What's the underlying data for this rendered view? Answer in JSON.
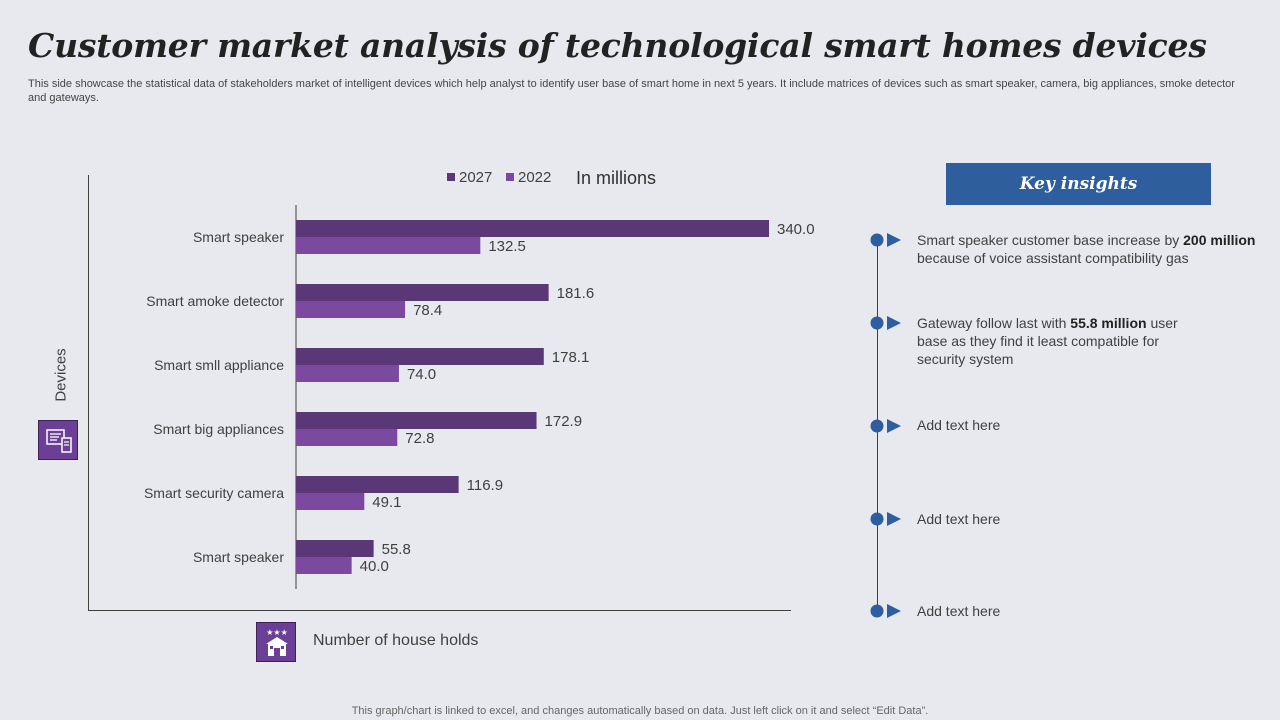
{
  "title": "Customer market analysis of technological smart homes devices",
  "subtitle": "This side showcase the statistical data of stakeholders market of intelligent devices which help analyst to identify user base of smart home in next 5 years. It include matrices of devices such as smart speaker, camera, big appliances, smoke detector and gateways.",
  "axis_caption": "Number of house holds",
  "footer": "This graph/chart is linked to excel,  and changes automatically based on data. Just left click on it and select “Edit Data”.",
  "icons": {
    "devices": "devices-icon",
    "households": "house-icon"
  },
  "chart_data": {
    "type": "bar",
    "orientation": "horizontal",
    "title": "In millions",
    "xlabel": "Number of house holds",
    "ylabel": "Devices",
    "categories": [
      "Smart speaker",
      "Smart amoke detector",
      "Smart smll appliance",
      "Smart big appliances",
      "Smart security camera",
      "Smart speaker"
    ],
    "series": [
      {
        "name": "2027",
        "color": "#5a3877",
        "values": [
          340.0,
          181.6,
          178.1,
          172.9,
          116.9,
          55.8
        ]
      },
      {
        "name": "2022",
        "color": "#7b4aa0",
        "values": [
          132.5,
          78.4,
          74.0,
          72.8,
          49.1,
          40.0
        ]
      }
    ],
    "xlim": [
      0,
      340
    ],
    "grid": false,
    "legend": "top"
  },
  "insights": {
    "header": "Key insights",
    "items": [
      {
        "text": "Smart speaker customer base increase by",
        "bold": "200 million",
        "tail": "because of voice assistant compatibility gas"
      },
      {
        "text": "Gateway follow last with",
        "bold": "55.8 million",
        "tail": "user base as they find it least compatible for security system"
      },
      {
        "text": "Add text here",
        "bold": "",
        "tail": ""
      },
      {
        "text": "Add text here",
        "bold": "",
        "tail": ""
      },
      {
        "text": "Add text here",
        "bold": "",
        "tail": ""
      }
    ]
  },
  "colors": {
    "accent_blue": "#2e5e9e",
    "bar_2027": "#5a3877",
    "bar_2022": "#7b4aa0",
    "icon_bg": "#6b3f96"
  }
}
